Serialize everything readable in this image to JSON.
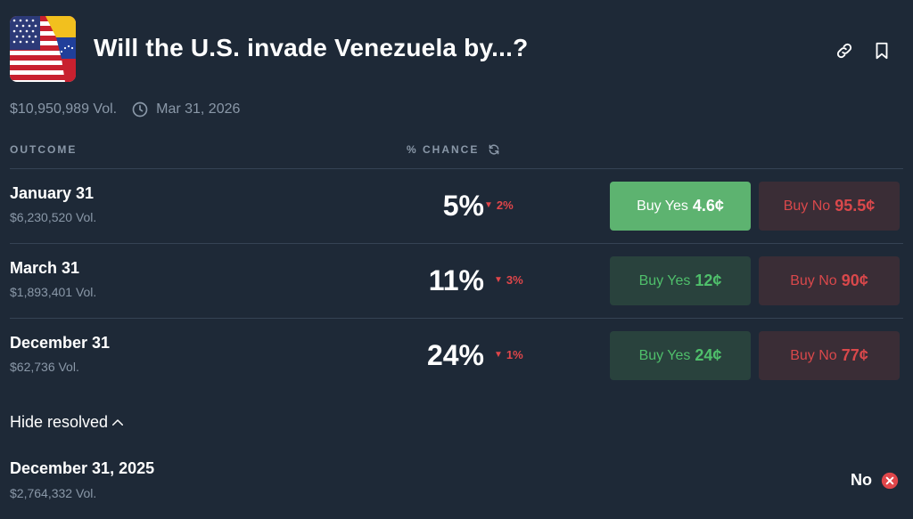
{
  "market": {
    "title": "Will the U.S. invade Venezuela by...?",
    "volume": "$10,950,989 Vol.",
    "end_date": "Mar 31, 2026"
  },
  "icons": {
    "flag": "us-venezuela-flag-icon",
    "link": "link-icon",
    "bookmark": "bookmark-icon",
    "clock": "clock-icon",
    "refresh": "refresh-icon",
    "chevron": "chevron-up-icon",
    "resolved_no": "x-circle-icon"
  },
  "columns": {
    "outcome": "OUTCOME",
    "chance": "% CHANCE"
  },
  "outcomes": [
    {
      "name": "January 31",
      "volume": "$6,230,520 Vol.",
      "chance": "5%",
      "delta": "2%",
      "yes_label": "Buy Yes",
      "yes_price": "4.6¢",
      "no_label": "Buy No",
      "no_price": "95.5¢"
    },
    {
      "name": "March 31",
      "volume": "$1,893,401 Vol.",
      "chance": "11%",
      "delta": "3%",
      "yes_label": "Buy Yes",
      "yes_price": "12¢",
      "no_label": "Buy No",
      "no_price": "90¢"
    },
    {
      "name": "December 31",
      "volume": "$62,736 Vol.",
      "chance": "24%",
      "delta": "1%",
      "yes_label": "Buy Yes",
      "yes_price": "24¢",
      "no_label": "Buy No",
      "no_price": "77¢"
    }
  ],
  "resolved": {
    "toggle_label": "Hide resolved",
    "name": "December 31, 2025",
    "volume": "$2,764,332 Vol.",
    "outcome": "No"
  },
  "colors": {
    "background": "#1e2937",
    "yes": "#4fbf6b",
    "yes_active_bg": "#5db370",
    "no": "#d9484b",
    "muted": "#8a98a8"
  }
}
